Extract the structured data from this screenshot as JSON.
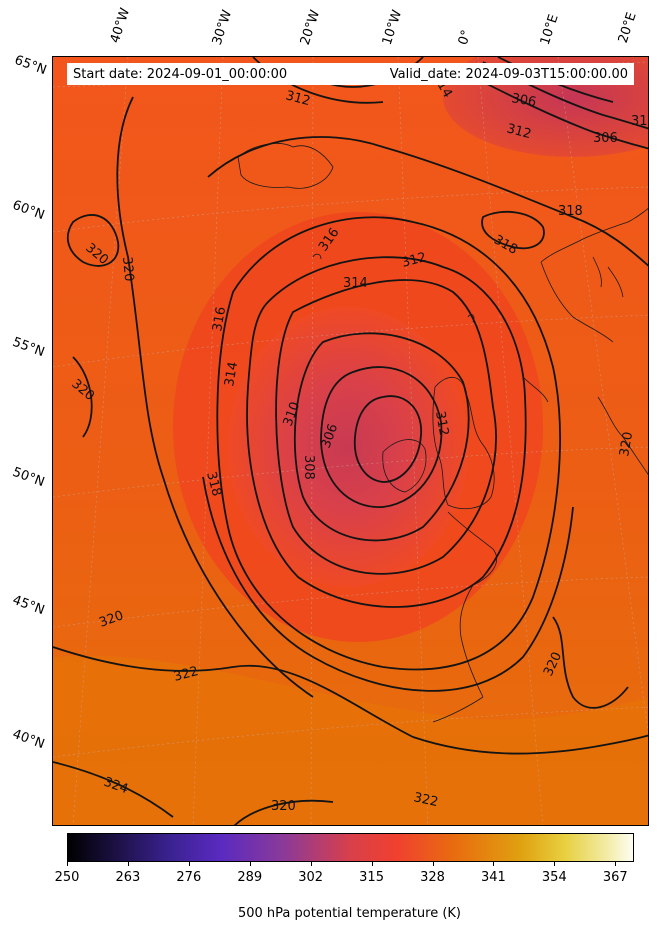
{
  "info": {
    "start_date": "Start date: 2024-09-01_00:00:00",
    "valid_date": "Valid_date: 2024-09-03T15:00:00.00"
  },
  "axes": {
    "lon_labels": [
      "40°W",
      "30°W",
      "20°W",
      "10°W",
      "0°",
      "10°E",
      "20°E"
    ],
    "lat_labels": [
      "65°N",
      "60°N",
      "55°N",
      "50°N",
      "45°N",
      "40°N"
    ]
  },
  "contours": {
    "labels": [
      "320",
      "320",
      "320",
      "320",
      "322",
      "324",
      "320",
      "322",
      "318",
      "316",
      "314",
      "310",
      "306",
      "308",
      "312",
      "314",
      "312",
      "316",
      "318",
      "318",
      "312",
      "306",
      "306",
      "312",
      "310",
      "320",
      "320",
      "314"
    ]
  },
  "colorbar": {
    "ticks": [
      "250",
      "263",
      "276",
      "289",
      "302",
      "315",
      "328",
      "341",
      "354",
      "367"
    ],
    "label": "500 hPa potential temperature (K)",
    "min": 250,
    "max": 371,
    "colors": {
      "low": "#000000",
      "mid": "#d8404a",
      "orange": "#e96a10",
      "high": "#fdfdf2"
    }
  },
  "field_colors": {
    "background": "#e8620f",
    "warm_ring": "#f04a20",
    "low_core": "#d23c48"
  }
}
